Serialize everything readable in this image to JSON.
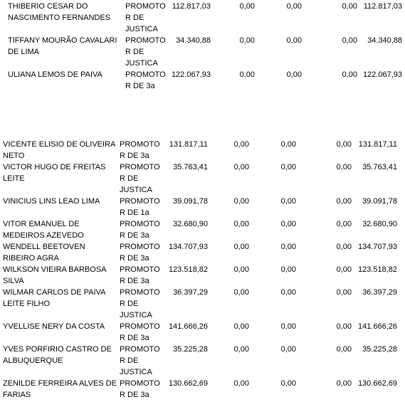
{
  "rows": [
    {
      "name": "THIBERIO CESAR DO NASCIMENTO FERNANDES",
      "role": "PROMOTO R DE JUSTICA",
      "v1": "112.817,03",
      "v2": "0,00",
      "v3": "0,00",
      "v4": "0,00",
      "v5": "112.817,03"
    },
    {
      "name": "TIFFANY MOURÃO CAVALARI DE LIMA",
      "role": "PROMOTO R DE JUSTICA",
      "v1": "34.340,88",
      "v2": "0,00",
      "v3": "0,00",
      "v4": "0,00",
      "v5": "34.340,88"
    },
    {
      "name": "ULIANA LEMOS DE PAIVA",
      "role": "PROMOTO R DE 3a",
      "v1": "122.067,93",
      "v2": "0,00",
      "v3": "0,00",
      "v4": "0,00",
      "v5": "122.067,93"
    },
    {
      "name": "VICENTE ELISIO DE OLIVEIRA NETO",
      "role": "PROMOTO R DE 3a",
      "v1": "131.817,11",
      "v2": "0,00",
      "v3": "0,00",
      "v4": "0,00",
      "v5": "131.817,11"
    },
    {
      "name": "VICTOR HUGO DE FREITAS LEITE",
      "role": "PROMOTO R DE JUSTICA",
      "v1": "35.763,41",
      "v2": "0,00",
      "v3": "0,00",
      "v4": "0,00",
      "v5": "35.763,41"
    },
    {
      "name": "VINICIUS LINS LEAO LIMA",
      "role": "PROMOTO R DE 1a",
      "v1": "39.091,78",
      "v2": "0,00",
      "v3": "0,00",
      "v4": "0,00",
      "v5": "39.091,78"
    },
    {
      "name": "VITOR EMANUEL DE MEDEIROS AZEVEDO",
      "role": "PROMOTO R DE 3a",
      "v1": "32.680,90",
      "v2": "0,00",
      "v3": "0,00",
      "v4": "0,00",
      "v5": "32.680,90"
    },
    {
      "name": "WENDELL BEETOVEN RIBEIRO AGRA",
      "role": "PROMOTO R DE 3a",
      "v1": "134.707,93",
      "v2": "0,00",
      "v3": "0,00",
      "v4": "0,00",
      "v5": "134.707,93"
    },
    {
      "name": "WILKSON VIEIRA BARBOSA SILVA",
      "role": "PROMOTO R DE 3a",
      "v1": "123.518,82",
      "v2": "0,00",
      "v3": "0,00",
      "v4": "0,00",
      "v5": "123.518,82"
    },
    {
      "name": "WILMAR CARLOS DE PAIVA LEITE FILHO",
      "role": "PROMOTO R DE JUSTICA",
      "v1": "36.397,29",
      "v2": "0,00",
      "v3": "0,00",
      "v4": "0,00",
      "v5": "36.397,29"
    },
    {
      "name": "YVELLISE NERY DA COSTA",
      "role": "PROMOTO R DE 3a",
      "v1": "141.666,26",
      "v2": "0,00",
      "v3": "0,00",
      "v4": "0,00",
      "v5": "141.666,26"
    },
    {
      "name": "YVES PORFIRIO CASTRO DE ALBUQUERQUE",
      "role": "PROMOTO R DE JUSTICA",
      "v1": "35.225,28",
      "v2": "0,00",
      "v3": "0,00",
      "v4": "0,00",
      "v5": "35.225,28"
    },
    {
      "name": "ZENILDE FERREIRA ALVES DE FARIAS",
      "role": "PROMOTO R DE 3a",
      "v1": "130.662,69",
      "v2": "0,00",
      "v3": "0,00",
      "v4": "0,00",
      "v5": "130.662,69"
    }
  ]
}
